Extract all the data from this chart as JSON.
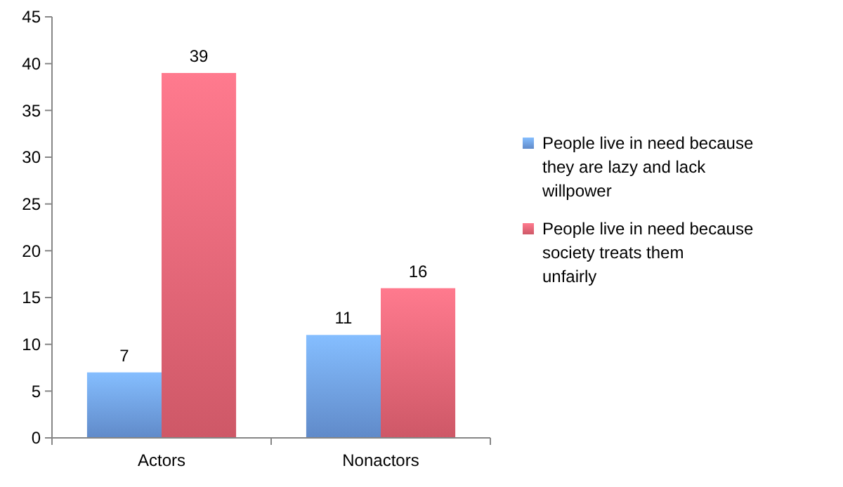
{
  "chart_data": {
    "type": "bar",
    "categories": [
      "Actors",
      "Nonactors"
    ],
    "series": [
      {
        "name": "People live in need because they are lazy and lack willpower",
        "color": "#6f9fe8",
        "values": [
          7,
          11
        ]
      },
      {
        "name": "People live in need because society treats them unfairly",
        "color": "#ee6677",
        "values": [
          39,
          16
        ]
      }
    ],
    "ylim": [
      0,
      45
    ],
    "yticks": [
      0,
      5,
      10,
      15,
      20,
      25,
      30,
      35,
      40,
      45
    ],
    "data_labels": true,
    "legend": "right",
    "grid": false
  }
}
